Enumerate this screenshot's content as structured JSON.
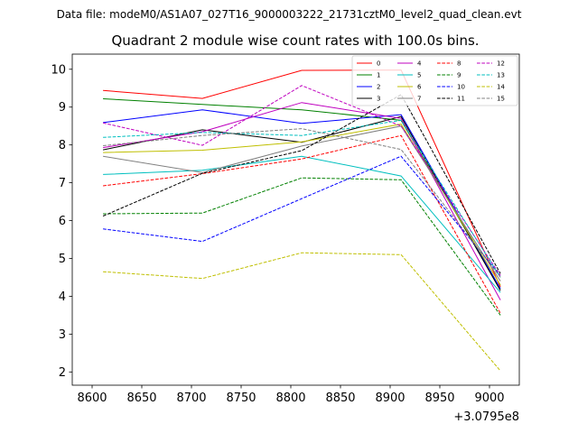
{
  "header": {
    "data_file": "Data file: modeM0/AS1A07_027T16_9000003222_21731cztM0_level2_quad_clean.evt"
  },
  "chart_data": {
    "type": "line",
    "title": "Quadrant 2 module wise count rates with 100.0s bins.",
    "xlabel": "",
    "ylabel": "",
    "x_offset_label": "+3.0795e8",
    "x": [
      8611,
      8711,
      8811,
      8911,
      9011
    ],
    "xlim": [
      8580,
      9030
    ],
    "ylim": [
      1.65,
      10.4
    ],
    "x_ticks": [
      8600,
      8650,
      8700,
      8750,
      8800,
      8850,
      8900,
      8950,
      9000
    ],
    "y_ticks": [
      2,
      3,
      4,
      5,
      6,
      7,
      8,
      9,
      10
    ],
    "legend_position": "top-right",
    "series": [
      {
        "name": "0",
        "color": "#ff0000",
        "dash": "solid",
        "values": [
          9.44,
          9.23,
          9.97,
          9.98,
          4.25
        ]
      },
      {
        "name": "1",
        "color": "#008000",
        "dash": "solid",
        "values": [
          9.22,
          9.07,
          8.93,
          8.65,
          4.2
        ]
      },
      {
        "name": "2",
        "color": "#0000ff",
        "dash": "solid",
        "values": [
          8.59,
          8.93,
          8.57,
          8.8,
          4.2
        ]
      },
      {
        "name": "3",
        "color": "#000000",
        "dash": "solid",
        "values": [
          7.87,
          8.4,
          8.07,
          8.75,
          4.15
        ]
      },
      {
        "name": "4",
        "color": "#bf00bf",
        "dash": "solid",
        "values": [
          7.93,
          8.35,
          9.12,
          8.7,
          3.9
        ]
      },
      {
        "name": "5",
        "color": "#00bfbf",
        "dash": "solid",
        "values": [
          7.22,
          7.33,
          7.7,
          7.18,
          4.1
        ]
      },
      {
        "name": "6",
        "color": "#bfbf00",
        "dash": "solid",
        "values": [
          7.8,
          7.86,
          8.08,
          8.55,
          4.3
        ]
      },
      {
        "name": "7",
        "color": "#808080",
        "dash": "solid",
        "values": [
          7.7,
          7.27,
          7.97,
          8.5,
          4.4
        ]
      },
      {
        "name": "8",
        "color": "#ff0000",
        "dash": "dashed",
        "values": [
          6.92,
          7.24,
          7.63,
          8.25,
          3.55
        ]
      },
      {
        "name": "9",
        "color": "#008000",
        "dash": "dashed",
        "values": [
          6.18,
          6.2,
          7.13,
          7.08,
          3.5
        ]
      },
      {
        "name": "10",
        "color": "#0000ff",
        "dash": "dashed",
        "values": [
          5.78,
          5.45,
          6.58,
          7.7,
          4.55
        ]
      },
      {
        "name": "11",
        "color": "#000000",
        "dash": "dashed",
        "values": [
          6.12,
          7.25,
          7.85,
          9.33,
          4.6
        ]
      },
      {
        "name": "12",
        "color": "#bf00bf",
        "dash": "dashed",
        "values": [
          8.58,
          7.99,
          9.57,
          8.5,
          4.55
        ]
      },
      {
        "name": "13",
        "color": "#00bfbf",
        "dash": "dashed",
        "values": [
          8.2,
          8.33,
          8.25,
          8.65,
          4.5
        ]
      },
      {
        "name": "14",
        "color": "#bfbf00",
        "dash": "dashed",
        "values": [
          4.65,
          4.47,
          5.15,
          5.1,
          2.03
        ]
      },
      {
        "name": "15",
        "color": "#808080",
        "dash": "dashed",
        "values": [
          7.98,
          8.25,
          8.43,
          7.88,
          4.5
        ]
      }
    ]
  }
}
